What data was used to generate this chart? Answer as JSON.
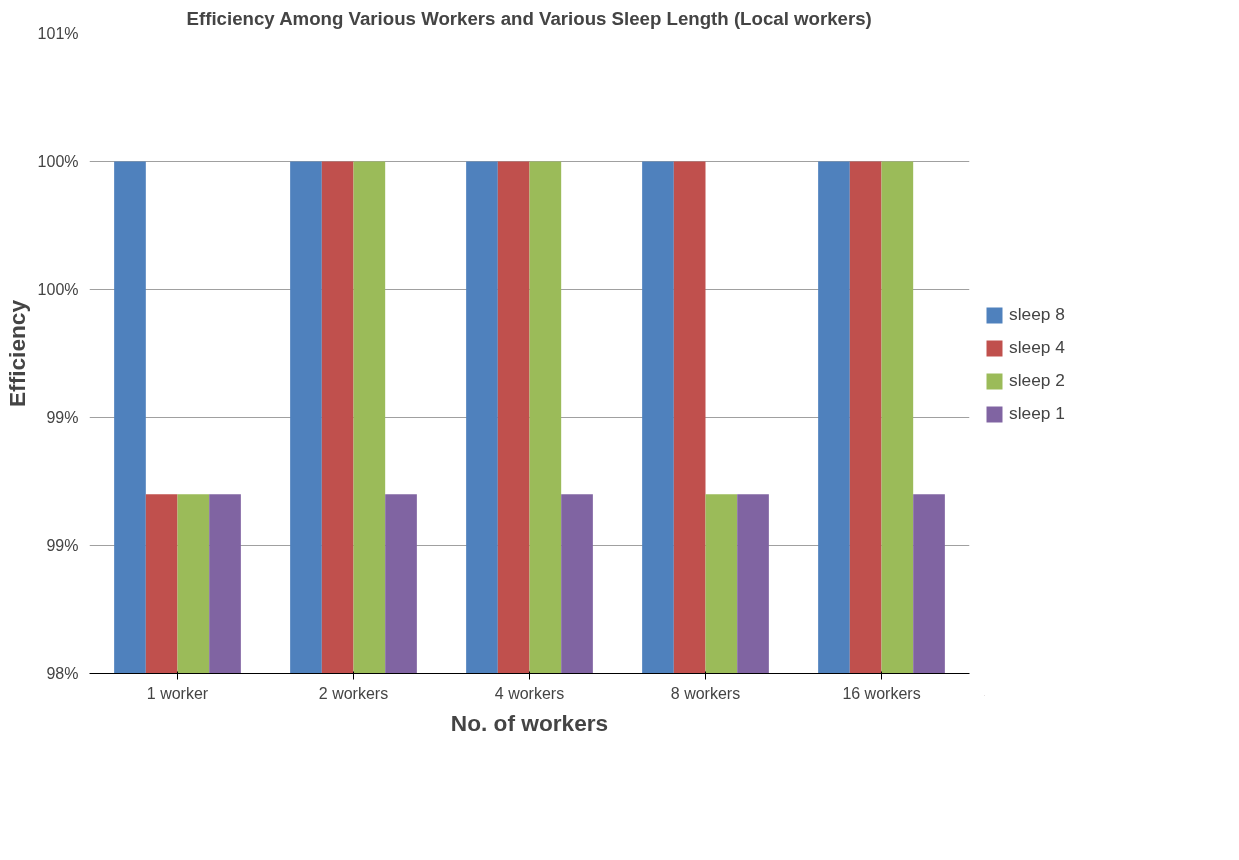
{
  "chart_data": {
    "type": "bar",
    "title": "Efficiency Among Various Workers and Various Sleep Length (Local workers)",
    "xlabel": "No. of workers",
    "ylabel": "Efficiency",
    "categories": [
      "1 worker",
      "2 workers",
      "4 workers",
      "8 workers",
      "16 workers"
    ],
    "series": [
      {
        "name": "sleep 8",
        "color": "#4f81bd",
        "values": [
          100.4,
          100.4,
          100.4,
          100.4,
          100.4
        ]
      },
      {
        "name": "sleep 4",
        "color": "#c0504d",
        "values": [
          98.84,
          100.4,
          100.4,
          100.4,
          100.4
        ]
      },
      {
        "name": "sleep 2",
        "color": "#9bbb59",
        "values": [
          98.84,
          100.4,
          100.4,
          98.84,
          100.4
        ]
      },
      {
        "name": "sleep 1",
        "color": "#8064a2",
        "values": [
          98.84,
          98.84,
          98.84,
          98.84,
          98.84
        ]
      }
    ],
    "ylim": [
      98,
      101
    ],
    "yticks": [
      {
        "value": 98,
        "label": "98%"
      },
      {
        "value": 98.6,
        "label": "99%"
      },
      {
        "value": 99.2,
        "label": "99%"
      },
      {
        "value": 99.8,
        "label": "100%"
      },
      {
        "value": 100.4,
        "label": "100%"
      },
      {
        "value": 101,
        "label": "101%"
      }
    ],
    "grid": "y",
    "legend": "right"
  }
}
